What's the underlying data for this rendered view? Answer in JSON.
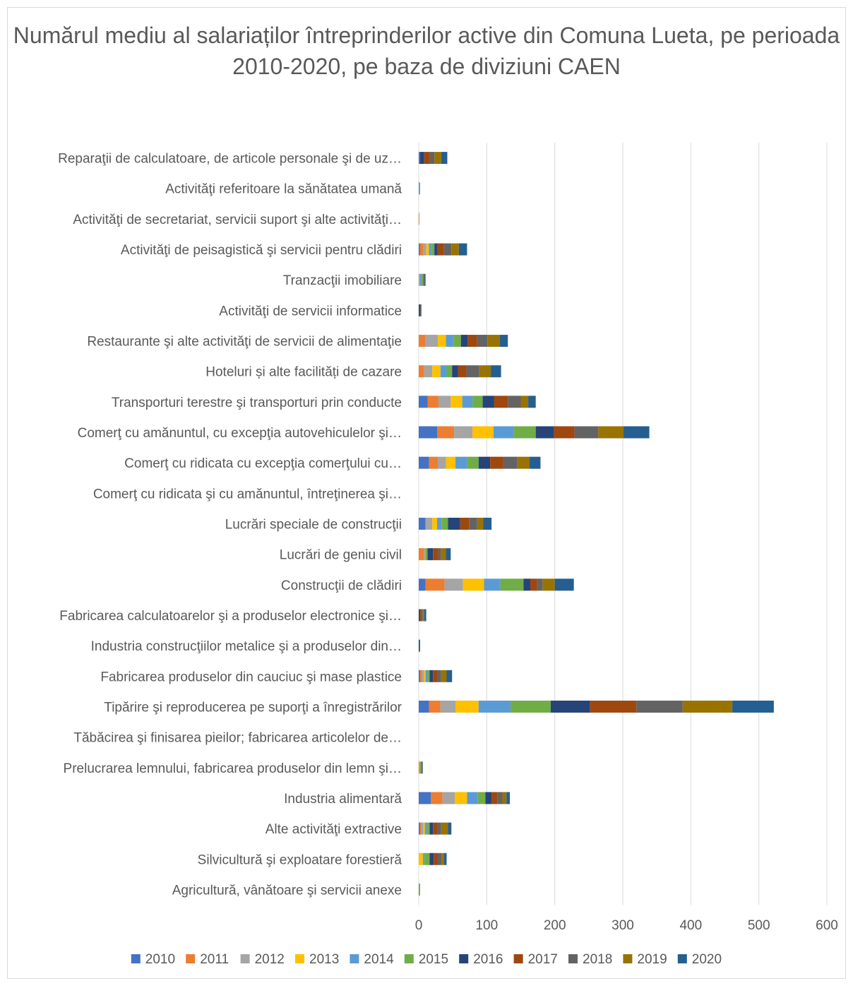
{
  "chart_data": {
    "type": "bar",
    "orientation": "horizontal",
    "stacked": true,
    "title": "Numărul mediu al salariaților întreprinderilor active din Comuna Lueta, pe perioada 2010-2020, pe baza de diviziuni CAEN",
    "xlabel": "",
    "ylabel": "",
    "xlim": [
      0,
      600
    ],
    "x_ticks": [
      0,
      100,
      200,
      300,
      400,
      500,
      600
    ],
    "grid": "vertical",
    "legend_position": "bottom",
    "categories": [
      "Agricultură, vânătoare şi servicii anexe",
      "Silvicultură şi exploatare forestieră",
      "Alte activităţi extractive",
      "Industria alimentară",
      "Prelucrarea lemnului, fabricarea  produselor din lemn şi…",
      "Tăbăcirea şi finisarea pieilor; fabricarea articolelor de…",
      "Tipărire şi reproducerea pe suporţi a înregistrărilor",
      "Fabricarea produselor din cauciuc şi mase plastice",
      "Industria construcţiilor metalice şi a produselor din…",
      "Fabricarea calculatoarelor şi a produselor electronice şi…",
      "Construcţii de clădiri",
      "Lucrări de geniu civil",
      "Lucrări speciale de construcţii",
      "Comerţ cu ridicata şi cu amănuntul, întreţinerea şi…",
      "Comerţ cu ridicata cu excepţia comerţului cu…",
      "Comerţ cu amănuntul, cu excepţia autovehiculelor şi…",
      "Transporturi terestre şi transporturi prin conducte",
      "Hoteluri și alte facilități de cazare",
      "Restaurante şi alte activităţi de servicii de alimentaţie",
      "Activităţi de servicii informatice",
      "Tranzacţii imobiliare",
      "Activităţi de peisagistică şi servicii pentru clădiri",
      "Activităţi de secretariat, servicii suport şi alte activităţi…",
      "Activităţi referitoare la sănătatea umană",
      "Reparaţii de calculatoare, de articole personale şi de uz…"
    ],
    "series": [
      {
        "name": "2010",
        "color": "#4472C4",
        "values": [
          0,
          0,
          2,
          18,
          0,
          0,
          15,
          2,
          0,
          0,
          10,
          0,
          10,
          0,
          15,
          27,
          13,
          0,
          0,
          0,
          0,
          2,
          0,
          0,
          2
        ]
      },
      {
        "name": "2011",
        "color": "#ED7D31",
        "values": [
          0,
          0,
          2,
          17,
          1,
          0,
          17,
          3,
          0,
          0,
          28,
          8,
          0,
          0,
          13,
          25,
          16,
          8,
          10,
          0,
          0,
          5,
          1,
          0,
          0
        ]
      },
      {
        "name": "2012",
        "color": "#A5A5A5",
        "values": [
          0,
          0,
          3,
          18,
          1,
          0,
          22,
          3,
          0,
          0,
          27,
          2,
          10,
          0,
          12,
          27,
          18,
          12,
          18,
          0,
          2,
          4,
          0,
          0,
          0
        ]
      },
      {
        "name": "2013",
        "color": "#FFC000",
        "values": [
          0,
          6,
          2,
          18,
          0,
          0,
          34,
          2,
          0,
          0,
          31,
          0,
          7,
          0,
          14,
          31,
          17,
          12,
          12,
          0,
          0,
          4,
          0,
          0,
          0
        ]
      },
      {
        "name": "2014",
        "color": "#5B9BD5",
        "values": [
          0,
          2,
          3,
          16,
          0,
          0,
          47,
          3,
          0,
          0,
          24,
          0,
          7,
          0,
          17,
          30,
          15,
          9,
          11,
          0,
          2,
          4,
          0,
          2,
          0
        ]
      },
      {
        "name": "2015",
        "color": "#70AD47",
        "values": [
          2,
          8,
          4,
          11,
          1,
          0,
          59,
          3,
          0,
          0,
          34,
          3,
          9,
          0,
          17,
          32,
          15,
          8,
          11,
          0,
          2,
          4,
          0,
          0,
          0
        ]
      },
      {
        "name": "2016",
        "color": "#264478",
        "values": [
          0,
          6,
          5,
          9,
          0,
          0,
          58,
          5,
          0,
          2,
          10,
          8,
          18,
          0,
          17,
          27,
          17,
          9,
          10,
          2,
          0,
          4,
          0,
          0,
          6
        ]
      },
      {
        "name": "2017",
        "color": "#9E480E",
        "values": [
          0,
          6,
          6,
          9,
          0,
          0,
          68,
          6,
          0,
          2,
          10,
          8,
          13,
          0,
          19,
          30,
          20,
          12,
          14,
          0,
          0,
          10,
          0,
          0,
          8
        ]
      },
      {
        "name": "2018",
        "color": "#636363",
        "values": [
          0,
          6,
          6,
          7,
          0,
          0,
          68,
          6,
          0,
          2,
          8,
          4,
          12,
          0,
          21,
          35,
          19,
          19,
          15,
          2,
          0,
          11,
          0,
          0,
          7
        ]
      },
      {
        "name": "2019",
        "color": "#997300",
        "values": [
          0,
          3,
          10,
          6,
          2,
          0,
          73,
          8,
          0,
          2,
          18,
          7,
          9,
          0,
          18,
          37,
          11,
          17,
          18,
          0,
          2,
          11,
          0,
          0,
          10
        ]
      },
      {
        "name": "2020",
        "color": "#255E91",
        "values": [
          0,
          4,
          5,
          5,
          1,
          0,
          61,
          8,
          2,
          3,
          28,
          7,
          12,
          0,
          16,
          38,
          11,
          15,
          12,
          0,
          2,
          12,
          0,
          0,
          9
        ]
      }
    ]
  }
}
